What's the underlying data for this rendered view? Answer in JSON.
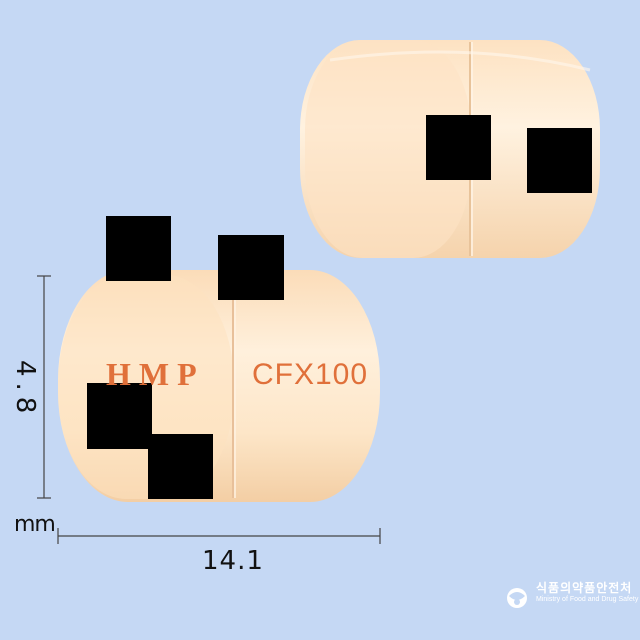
{
  "imprint": {
    "front_text": "HMP",
    "back_text": "CFX100"
  },
  "dimensions": {
    "height_label": "4.8",
    "width_label": "14.1",
    "unit_label": "mm"
  },
  "watermark": {
    "name_ko": "식품의약품안전처",
    "name_en": "Ministry of Food and Drug Safety"
  },
  "colors": {
    "background": "#c5d8f4",
    "capsule": "#fde4c4",
    "imprint": "#e0703a",
    "redaction": "#000000"
  }
}
